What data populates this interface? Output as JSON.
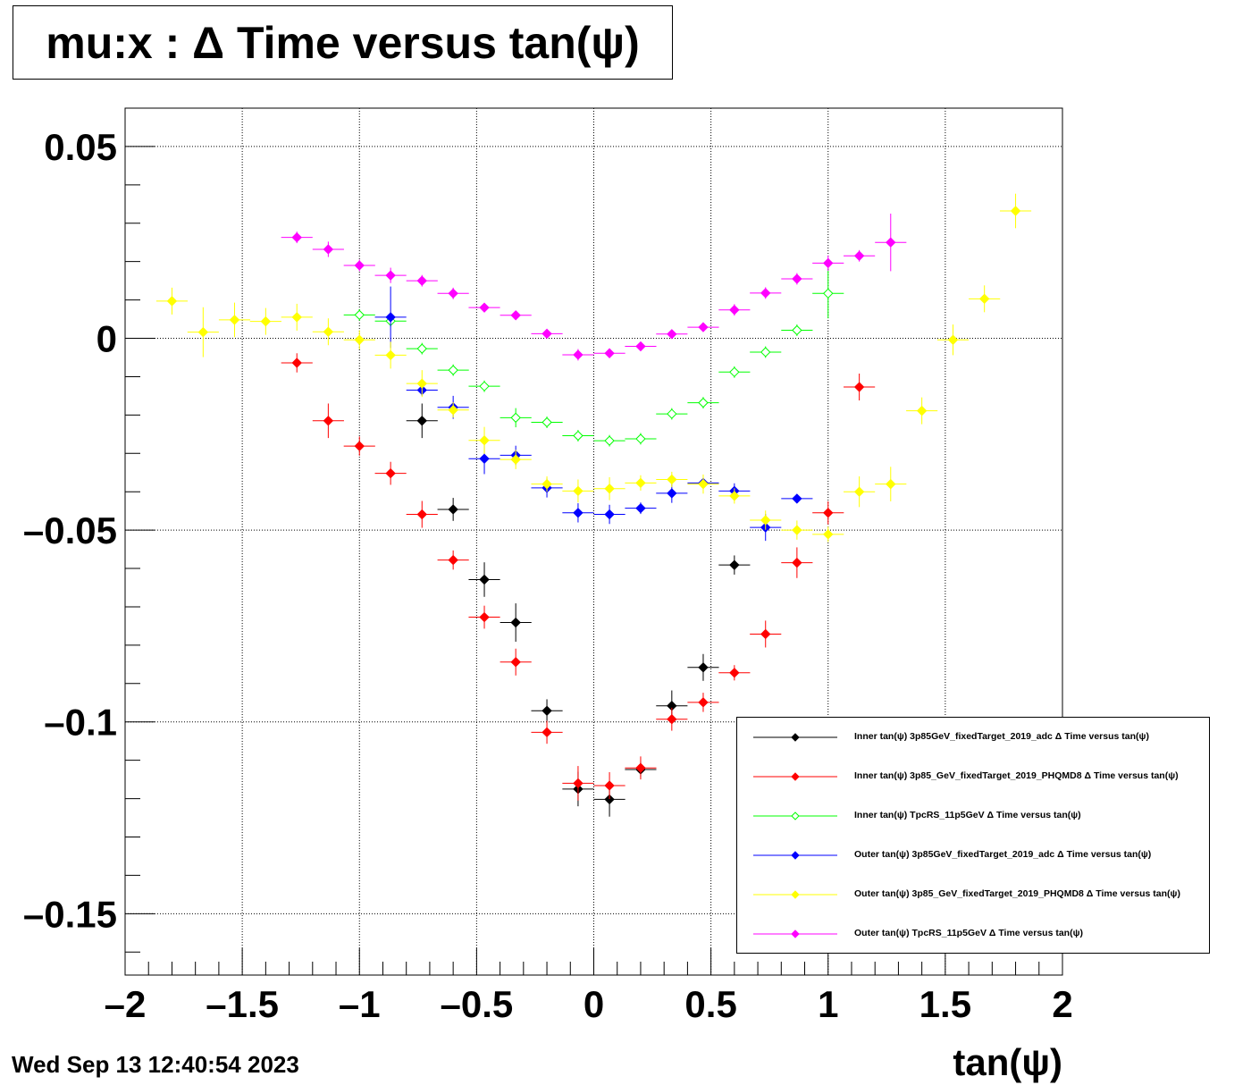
{
  "title": "mu:x : Δ Time versus tan(ψ)",
  "timestamp": "Wed Sep 13 12:40:54 2023",
  "chart_data": {
    "type": "scatter",
    "title": "mu:x : Δ Time versus tan(ψ)",
    "xlabel": "tan(ψ)",
    "ylabel": "",
    "xlim": [
      -2,
      2
    ],
    "ylim": [
      -0.166,
      0.06
    ],
    "grid": true,
    "legend_position": "bottom-right",
    "x_ticks": [
      -2,
      -1.5,
      -1,
      -0.5,
      0,
      0.5,
      1,
      1.5,
      2
    ],
    "x_tick_labels": [
      "–2",
      "–1.5",
      "–1",
      "–0.5",
      "0",
      "0.5",
      "1",
      "1.5",
      "2"
    ],
    "y_ticks": [
      0.05,
      0,
      -0.05,
      -0.1,
      -0.15
    ],
    "y_tick_labels": [
      "0.05",
      "0",
      "–0.05",
      "–0.1",
      "–0.15"
    ],
    "series": [
      {
        "name": "Inner tan(ψ) 3p85GeV_fixedTarget_2019_adc Δ Time versus tan(ψ)",
        "color": "#000000",
        "marker": "filled-diamond",
        "points": [
          {
            "x": -0.733,
            "y": -0.0215,
            "ex": 0.067,
            "ey": 0.0045
          },
          {
            "x": -0.6,
            "y": -0.0446,
            "ex": 0.067,
            "ey": 0.003
          },
          {
            "x": -0.467,
            "y": -0.0629,
            "ex": 0.067,
            "ey": 0.0045
          },
          {
            "x": -0.333,
            "y": -0.0741,
            "ex": 0.067,
            "ey": 0.005
          },
          {
            "x": -0.2,
            "y": -0.0971,
            "ex": 0.067,
            "ey": 0.003
          },
          {
            "x": -0.067,
            "y": -0.1175,
            "ex": 0.067,
            "ey": 0.0045
          },
          {
            "x": 0.067,
            "y": -0.1202,
            "ex": 0.067,
            "ey": 0.0045
          },
          {
            "x": 0.2,
            "y": -0.1124,
            "ex": 0.067,
            "ey": 0.002
          },
          {
            "x": 0.333,
            "y": -0.0958,
            "ex": 0.067,
            "ey": 0.004
          },
          {
            "x": 0.467,
            "y": -0.0858,
            "ex": 0.067,
            "ey": 0.0035
          },
          {
            "x": 0.6,
            "y": -0.0591,
            "ex": 0.067,
            "ey": 0.0025
          }
        ]
      },
      {
        "name": "Inner tan(ψ) 3p85_GeV_fixedTarget_2019_PHQMD8 Δ Time versus tan(ψ)",
        "color": "#ff0000",
        "marker": "filled-diamond",
        "points": [
          {
            "x": -1.267,
            "y": -0.0064,
            "ex": 0.067,
            "ey": 0.0025
          },
          {
            "x": -1.133,
            "y": -0.0215,
            "ex": 0.067,
            "ey": 0.0045
          },
          {
            "x": -1.0,
            "y": -0.0281,
            "ex": 0.067,
            "ey": 0.0025
          },
          {
            "x": -0.867,
            "y": -0.0352,
            "ex": 0.067,
            "ey": 0.003
          },
          {
            "x": -0.733,
            "y": -0.0459,
            "ex": 0.067,
            "ey": 0.0035
          },
          {
            "x": -0.6,
            "y": -0.0578,
            "ex": 0.067,
            "ey": 0.0025
          },
          {
            "x": -0.467,
            "y": -0.0727,
            "ex": 0.067,
            "ey": 0.003
          },
          {
            "x": -0.333,
            "y": -0.0844,
            "ex": 0.067,
            "ey": 0.0035
          },
          {
            "x": -0.2,
            "y": -0.1027,
            "ex": 0.067,
            "ey": 0.003
          },
          {
            "x": -0.067,
            "y": -0.116,
            "ex": 0.067,
            "ey": 0.0045
          },
          {
            "x": 0.067,
            "y": -0.1166,
            "ex": 0.067,
            "ey": 0.0035
          },
          {
            "x": 0.2,
            "y": -0.112,
            "ex": 0.067,
            "ey": 0.003
          },
          {
            "x": 0.333,
            "y": -0.0993,
            "ex": 0.067,
            "ey": 0.003
          },
          {
            "x": 0.467,
            "y": -0.0949,
            "ex": 0.067,
            "ey": 0.0025
          },
          {
            "x": 0.6,
            "y": -0.0872,
            "ex": 0.067,
            "ey": 0.002
          },
          {
            "x": 0.733,
            "y": -0.0771,
            "ex": 0.067,
            "ey": 0.0035
          },
          {
            "x": 0.867,
            "y": -0.0585,
            "ex": 0.067,
            "ey": 0.004
          },
          {
            "x": 1.0,
            "y": -0.0455,
            "ex": 0.067,
            "ey": 0.003
          },
          {
            "x": 1.133,
            "y": -0.0127,
            "ex": 0.067,
            "ey": 0.0035
          }
        ]
      },
      {
        "name": "Inner tan(ψ) TpcRS_11p5GeV Δ Time versus tan(ψ)",
        "color": "#00ff00",
        "marker": "open-diamond",
        "points": [
          {
            "x": -1.0,
            "y": 0.0061,
            "ex": 0.067,
            "ey": 0.0015
          },
          {
            "x": -0.867,
            "y": 0.0045,
            "ex": 0.067,
            "ey": 0.0015
          },
          {
            "x": -0.733,
            "y": -0.0027,
            "ex": 0.067,
            "ey": 0.0015
          },
          {
            "x": -0.6,
            "y": -0.0083,
            "ex": 0.067,
            "ey": 0.0015
          },
          {
            "x": -0.467,
            "y": -0.0125,
            "ex": 0.067,
            "ey": 0.0015
          },
          {
            "x": -0.333,
            "y": -0.0207,
            "ex": 0.067,
            "ey": 0.0025
          },
          {
            "x": -0.2,
            "y": -0.0219,
            "ex": 0.067,
            "ey": 0.0015
          },
          {
            "x": -0.067,
            "y": -0.0254,
            "ex": 0.067,
            "ey": 0.0015
          },
          {
            "x": 0.067,
            "y": -0.0267,
            "ex": 0.067,
            "ey": 0.0015
          },
          {
            "x": 0.2,
            "y": -0.0262,
            "ex": 0.067,
            "ey": 0.0015
          },
          {
            "x": 0.333,
            "y": -0.0197,
            "ex": 0.067,
            "ey": 0.0015
          },
          {
            "x": 0.467,
            "y": -0.0168,
            "ex": 0.067,
            "ey": 0.0015
          },
          {
            "x": 0.6,
            "y": -0.0088,
            "ex": 0.067,
            "ey": 0.0015
          },
          {
            "x": 0.733,
            "y": -0.0036,
            "ex": 0.067,
            "ey": 0.0015
          },
          {
            "x": 0.867,
            "y": 0.0021,
            "ex": 0.067,
            "ey": 0.0015
          },
          {
            "x": 1.0,
            "y": 0.0117,
            "ex": 0.067,
            "ey": 0.0065
          }
        ]
      },
      {
        "name": "Outer tan(ψ) 3p85GeV_fixedTarget_2019_adc Δ Time versus tan(ψ)",
        "color": "#0000ff",
        "marker": "filled-diamond",
        "points": [
          {
            "x": -0.867,
            "y": 0.0055,
            "ex": 0.067,
            "ey": 0.008
          },
          {
            "x": -0.733,
            "y": -0.0135,
            "ex": 0.067,
            "ey": 0.0015
          },
          {
            "x": -0.6,
            "y": -0.018,
            "ex": 0.067,
            "ey": 0.003
          },
          {
            "x": -0.467,
            "y": -0.0314,
            "ex": 0.067,
            "ey": 0.004
          },
          {
            "x": -0.333,
            "y": -0.0305,
            "ex": 0.067,
            "ey": 0.0025
          },
          {
            "x": -0.2,
            "y": -0.039,
            "ex": 0.067,
            "ey": 0.0025
          },
          {
            "x": -0.067,
            "y": -0.0455,
            "ex": 0.067,
            "ey": 0.0025
          },
          {
            "x": 0.067,
            "y": -0.0459,
            "ex": 0.067,
            "ey": 0.0025
          },
          {
            "x": 0.2,
            "y": -0.0443,
            "ex": 0.067,
            "ey": 0.0015
          },
          {
            "x": 0.333,
            "y": -0.0404,
            "ex": 0.067,
            "ey": 0.0025
          },
          {
            "x": 0.467,
            "y": -0.0377,
            "ex": 0.067,
            "ey": 0.0015
          },
          {
            "x": 0.6,
            "y": -0.0398,
            "ex": 0.067,
            "ey": 0.002
          },
          {
            "x": 0.733,
            "y": -0.0493,
            "ex": 0.067,
            "ey": 0.0035
          },
          {
            "x": 0.867,
            "y": -0.0418,
            "ex": 0.067,
            "ey": 0.001
          }
        ]
      },
      {
        "name": "Outer tan(ψ) 3p85_GeV_fixedTarget_2019_PHQMD8 Δ Time versus tan(ψ)",
        "color": "#ffff00",
        "marker": "filled-diamond",
        "points": [
          {
            "x": -1.8,
            "y": 0.0097,
            "ex": 0.067,
            "ey": 0.0035
          },
          {
            "x": -1.667,
            "y": 0.0016,
            "ex": 0.067,
            "ey": 0.0065
          },
          {
            "x": -1.533,
            "y": 0.0048,
            "ex": 0.067,
            "ey": 0.0045
          },
          {
            "x": -1.4,
            "y": 0.0044,
            "ex": 0.067,
            "ey": 0.0035
          },
          {
            "x": -1.267,
            "y": 0.0055,
            "ex": 0.067,
            "ey": 0.0035
          },
          {
            "x": -1.133,
            "y": 0.0017,
            "ex": 0.067,
            "ey": 0.0035
          },
          {
            "x": -1.0,
            "y": -0.0004,
            "ex": 0.067,
            "ey": 0.0025
          },
          {
            "x": -0.867,
            "y": -0.0044,
            "ex": 0.067,
            "ey": 0.0035
          },
          {
            "x": -0.733,
            "y": -0.0118,
            "ex": 0.067,
            "ey": 0.0035
          },
          {
            "x": -0.6,
            "y": -0.0187,
            "ex": 0.067,
            "ey": 0.002
          },
          {
            "x": -0.467,
            "y": -0.0266,
            "ex": 0.067,
            "ey": 0.0035
          },
          {
            "x": -0.333,
            "y": -0.0316,
            "ex": 0.067,
            "ey": 0.0025
          },
          {
            "x": -0.2,
            "y": -0.038,
            "ex": 0.067,
            "ey": 0.002
          },
          {
            "x": -0.067,
            "y": -0.0398,
            "ex": 0.067,
            "ey": 0.003
          },
          {
            "x": 0.067,
            "y": -0.0392,
            "ex": 0.067,
            "ey": 0.003
          },
          {
            "x": 0.2,
            "y": -0.0377,
            "ex": 0.067,
            "ey": 0.002
          },
          {
            "x": 0.333,
            "y": -0.0368,
            "ex": 0.067,
            "ey": 0.002
          },
          {
            "x": 0.467,
            "y": -0.038,
            "ex": 0.067,
            "ey": 0.0025
          },
          {
            "x": 0.6,
            "y": -0.0411,
            "ex": 0.067,
            "ey": 0.002
          },
          {
            "x": 0.733,
            "y": -0.0474,
            "ex": 0.067,
            "ey": 0.0025
          },
          {
            "x": 0.867,
            "y": -0.05,
            "ex": 0.067,
            "ey": 0.0025
          },
          {
            "x": 1.0,
            "y": -0.0511,
            "ex": 0.067,
            "ey": 0.002
          },
          {
            "x": 1.133,
            "y": -0.04,
            "ex": 0.067,
            "ey": 0.004
          },
          {
            "x": 1.267,
            "y": -0.038,
            "ex": 0.067,
            "ey": 0.0045
          },
          {
            "x": 1.4,
            "y": -0.0189,
            "ex": 0.067,
            "ey": 0.0035
          },
          {
            "x": 1.533,
            "y": -0.0004,
            "ex": 0.067,
            "ey": 0.004
          },
          {
            "x": 1.667,
            "y": 0.0103,
            "ex": 0.067,
            "ey": 0.0035
          },
          {
            "x": 1.8,
            "y": 0.0332,
            "ex": 0.067,
            "ey": 0.0045
          }
        ]
      },
      {
        "name": "Outer tan(ψ) TpcRS_11p5GeV Δ Time versus tan(ψ)",
        "color": "#ff00ff",
        "marker": "filled-diamond",
        "points": [
          {
            "x": -1.267,
            "y": 0.0263,
            "ex": 0.067,
            "ey": 0.0015
          },
          {
            "x": -1.133,
            "y": 0.0232,
            "ex": 0.067,
            "ey": 0.002
          },
          {
            "x": -1.0,
            "y": 0.019,
            "ex": 0.067,
            "ey": 0.0015
          },
          {
            "x": -0.867,
            "y": 0.0164,
            "ex": 0.067,
            "ey": 0.002
          },
          {
            "x": -0.733,
            "y": 0.015,
            "ex": 0.067,
            "ey": 0.0015
          },
          {
            "x": -0.6,
            "y": 0.0117,
            "ex": 0.067,
            "ey": 0.0015
          },
          {
            "x": -0.467,
            "y": 0.008,
            "ex": 0.067,
            "ey": 0.001
          },
          {
            "x": -0.333,
            "y": 0.006,
            "ex": 0.067,
            "ey": 0.001
          },
          {
            "x": -0.2,
            "y": 0.0012,
            "ex": 0.067,
            "ey": 0.001
          },
          {
            "x": -0.067,
            "y": -0.0043,
            "ex": 0.067,
            "ey": 0.0015
          },
          {
            "x": 0.067,
            "y": -0.0039,
            "ex": 0.067,
            "ey": 0.001
          },
          {
            "x": 0.2,
            "y": -0.0021,
            "ex": 0.067,
            "ey": 0.001
          },
          {
            "x": 0.333,
            "y": 0.0011,
            "ex": 0.067,
            "ey": 0.001
          },
          {
            "x": 0.467,
            "y": 0.0029,
            "ex": 0.067,
            "ey": 0.001
          },
          {
            "x": 0.6,
            "y": 0.0074,
            "ex": 0.067,
            "ey": 0.0015
          },
          {
            "x": 0.733,
            "y": 0.0118,
            "ex": 0.067,
            "ey": 0.0015
          },
          {
            "x": 0.867,
            "y": 0.0155,
            "ex": 0.067,
            "ey": 0.0015
          },
          {
            "x": 1.0,
            "y": 0.0196,
            "ex": 0.067,
            "ey": 0.002
          },
          {
            "x": 1.133,
            "y": 0.0215,
            "ex": 0.067,
            "ey": 0.0015
          },
          {
            "x": 1.267,
            "y": 0.025,
            "ex": 0.067,
            "ey": 0.0075
          }
        ]
      }
    ]
  }
}
